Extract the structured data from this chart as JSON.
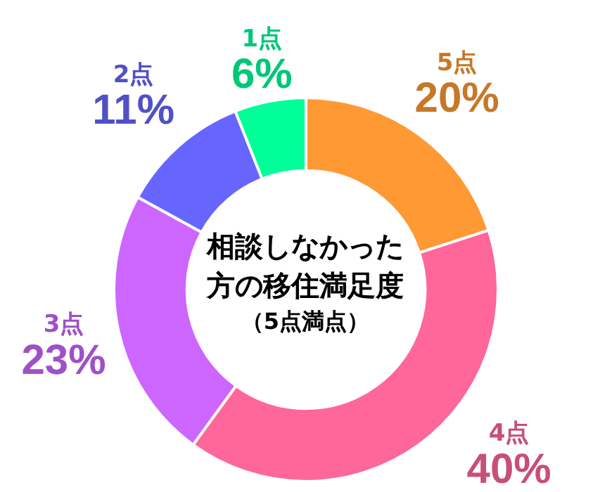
{
  "chart_data": {
    "type": "donut",
    "title": "相談しなかった方の移住満足度",
    "subtitle": "（5点満点）",
    "categories": [
      "5点",
      "4点",
      "3点",
      "2点",
      "1点"
    ],
    "values": [
      20,
      40,
      23,
      11,
      6
    ],
    "colors": [
      "#ff9933",
      "#ff6699",
      "#cc66ff",
      "#6666ff",
      "#00ff99"
    ],
    "value_labels": [
      "20%",
      "40%",
      "23%",
      "11%",
      "6%"
    ],
    "legend": false
  }
}
